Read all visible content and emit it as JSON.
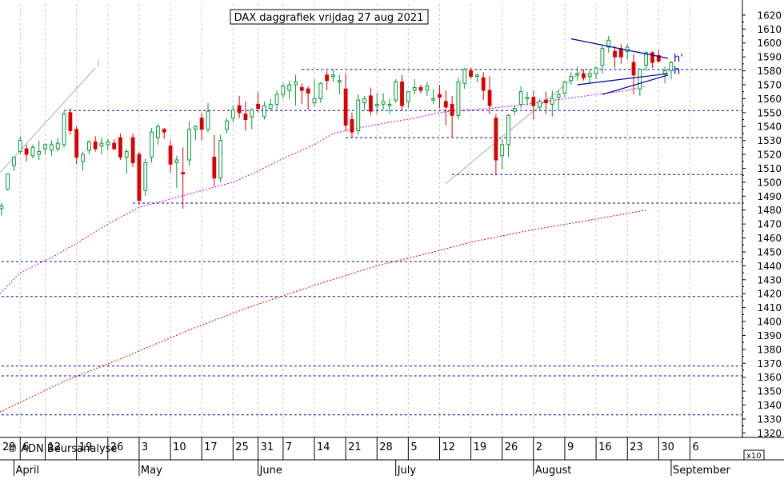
{
  "chart_data": {
    "type": "candlestick",
    "title": "DAX daggrafiek vrijdag 27 aug 2021",
    "copyright": "© ADN Beursanalyse",
    "y_multiplier_label": "x10",
    "y_ticks": [
      1320,
      1330,
      1340,
      1350,
      1360,
      1370,
      1380,
      1390,
      1400,
      1410,
      1420,
      1430,
      1440,
      1450,
      1460,
      1470,
      1480,
      1490,
      1500,
      1510,
      1520,
      1530,
      1540,
      1550,
      1560,
      1570,
      1580,
      1590,
      1600,
      1610,
      1620
    ],
    "ylim": [
      1317,
      1625
    ],
    "colors": {
      "up": "#009933",
      "down": "#dd0000",
      "grid": "#c8c8c8",
      "support": "#0000aa",
      "ma_fast": "#cc00cc",
      "ma_slow": "#dd0000",
      "trend": "#aaaaaa",
      "triangle": "#000099",
      "annotation": "#0000cc"
    },
    "x_day_labels": [
      {
        "label": "29",
        "i": -2
      },
      {
        "label": "6",
        "i": 3
      },
      {
        "label": "12",
        "i": 7
      },
      {
        "label": "19",
        "i": 12
      },
      {
        "label": "26",
        "i": 17
      },
      {
        "label": "3",
        "i": 22
      },
      {
        "label": "10",
        "i": 27
      },
      {
        "label": "17",
        "i": 32
      },
      {
        "label": "25",
        "i": 37
      },
      {
        "label": "31",
        "i": 41
      },
      {
        "label": "7",
        "i": 45
      },
      {
        "label": "14",
        "i": 50
      },
      {
        "label": "21",
        "i": 55
      },
      {
        "label": "28",
        "i": 60
      },
      {
        "label": "5",
        "i": 65
      },
      {
        "label": "12",
        "i": 70
      },
      {
        "label": "19",
        "i": 75
      },
      {
        "label": "26",
        "i": 80
      },
      {
        "label": "2",
        "i": 85
      },
      {
        "label": "9",
        "i": 90
      },
      {
        "label": "16",
        "i": 95
      },
      {
        "label": "23",
        "i": 100
      },
      {
        "label": "30",
        "i": 105
      },
      {
        "label": "6",
        "i": 110
      }
    ],
    "x_month_labels": [
      {
        "label": "April",
        "i": 2
      },
      {
        "label": "May",
        "i": 22
      },
      {
        "label": "June",
        "i": 41
      },
      {
        "label": "July",
        "i": 63
      },
      {
        "label": "August",
        "i": 85
      },
      {
        "label": "September",
        "i": 107
      }
    ],
    "support_lines": [
      {
        "y": 1551.5,
        "from": 10
      },
      {
        "y": 1532,
        "from": 55
      },
      {
        "y": 1505.5,
        "from": 72
      },
      {
        "y": 1485,
        "from": 21
      },
      {
        "y": 1581,
        "from": 48
      },
      {
        "y": 1443,
        "from": 0
      },
      {
        "y": 1418,
        "from": 0
      },
      {
        "y": 1368,
        "from": 0
      },
      {
        "y": 1361,
        "from": 0
      },
      {
        "y": 1333,
        "from": 0
      }
    ],
    "triangle": {
      "upper": [
        [
          91,
          1603
        ],
        [
          106.5,
          1589
        ]
      ],
      "lower": [
        [
          92,
          1570
        ],
        [
          106.5,
          1578
        ]
      ],
      "base": [
        [
          96,
          1563
        ],
        [
          106.5,
          1577
        ]
      ],
      "labels": [
        {
          "text": "h'",
          "i": 107,
          "y": 1589
        },
        {
          "text": "h",
          "i": 107,
          "y": 1580
        }
      ]
    },
    "trend_lines": [
      {
        "from": [
          -1.5,
          1507
        ],
        "to": [
          15,
          1582
        ],
        "label": "i"
      },
      {
        "from": [
          71,
          1499
        ],
        "to": [
          93,
          1581
        ],
        "label": ""
      }
    ],
    "ma_fast": [
      [
        -1.5,
        1420
      ],
      [
        3,
        1435
      ],
      [
        8,
        1446
      ],
      [
        12,
        1456
      ],
      [
        17,
        1470
      ],
      [
        22,
        1482
      ],
      [
        27,
        1488
      ],
      [
        32,
        1494
      ],
      [
        37,
        1500
      ],
      [
        41,
        1508
      ],
      [
        45,
        1517
      ],
      [
        50,
        1527
      ],
      [
        53,
        1535
      ],
      [
        57,
        1539
      ],
      [
        62,
        1543
      ],
      [
        66,
        1546
      ],
      [
        70,
        1550
      ],
      [
        74,
        1552
      ],
      [
        78,
        1553
      ],
      [
        84,
        1556
      ],
      [
        90,
        1560
      ],
      [
        95,
        1563
      ],
      [
        100,
        1566
      ],
      [
        103,
        1569
      ]
    ],
    "ma_slow": [
      [
        -1.5,
        1335
      ],
      [
        10,
        1357
      ],
      [
        20,
        1375
      ],
      [
        30,
        1394
      ],
      [
        40,
        1411
      ],
      [
        50,
        1426
      ],
      [
        60,
        1440
      ],
      [
        70,
        1451
      ],
      [
        75,
        1457
      ],
      [
        85,
        1466
      ],
      [
        93,
        1472
      ],
      [
        103,
        1480
      ]
    ],
    "candles": [
      {
        "o": 1481,
        "h": 1485,
        "l": 1476,
        "c": 1483
      },
      {
        "o": 1495,
        "h": 1506,
        "l": 1494,
        "c": 1506
      },
      {
        "o": 1512,
        "h": 1518,
        "l": 1508,
        "c": 1518
      },
      {
        "o": 1522,
        "h": 1533,
        "l": 1520,
        "c": 1530
      },
      {
        "o": 1524,
        "h": 1527,
        "l": 1515,
        "c": 1520
      },
      {
        "o": 1519,
        "h": 1527,
        "l": 1517,
        "c": 1525
      },
      {
        "o": 1520,
        "h": 1530,
        "l": 1516,
        "c": 1522
      },
      {
        "o": 1524,
        "h": 1528,
        "l": 1520,
        "c": 1527
      },
      {
        "o": 1523,
        "h": 1530,
        "l": 1519,
        "c": 1527
      },
      {
        "o": 1524,
        "h": 1532,
        "l": 1522,
        "c": 1528
      },
      {
        "o": 1527,
        "h": 1551,
        "l": 1525,
        "c": 1549
      },
      {
        "o": 1550,
        "h": 1553,
        "l": 1534,
        "c": 1537
      },
      {
        "o": 1538,
        "h": 1540,
        "l": 1513,
        "c": 1518
      },
      {
        "o": 1515,
        "h": 1522,
        "l": 1508,
        "c": 1520
      },
      {
        "o": 1523,
        "h": 1530,
        "l": 1520,
        "c": 1529
      },
      {
        "o": 1529,
        "h": 1533,
        "l": 1522,
        "c": 1524
      },
      {
        "o": 1526,
        "h": 1532,
        "l": 1520,
        "c": 1528
      },
      {
        "o": 1527,
        "h": 1531,
        "l": 1523,
        "c": 1529
      },
      {
        "o": 1528,
        "h": 1531,
        "l": 1523,
        "c": 1524
      },
      {
        "o": 1532,
        "h": 1535,
        "l": 1516,
        "c": 1518
      },
      {
        "o": 1518,
        "h": 1524,
        "l": 1506,
        "c": 1522
      },
      {
        "o": 1532,
        "h": 1535,
        "l": 1511,
        "c": 1514
      },
      {
        "o": 1520,
        "h": 1522,
        "l": 1484,
        "c": 1487
      },
      {
        "o": 1494,
        "h": 1517,
        "l": 1490,
        "c": 1514
      },
      {
        "o": 1518,
        "h": 1539,
        "l": 1514,
        "c": 1536
      },
      {
        "o": 1532,
        "h": 1542,
        "l": 1527,
        "c": 1540
      },
      {
        "o": 1538,
        "h": 1539,
        "l": 1531,
        "c": 1536
      },
      {
        "o": 1526,
        "h": 1530,
        "l": 1507,
        "c": 1513
      },
      {
        "o": 1514,
        "h": 1519,
        "l": 1496,
        "c": 1516
      },
      {
        "o": 1507,
        "h": 1525,
        "l": 1481,
        "c": 1506
      },
      {
        "o": 1516,
        "h": 1544,
        "l": 1512,
        "c": 1538
      },
      {
        "o": 1538,
        "h": 1541,
        "l": 1530,
        "c": 1540
      },
      {
        "o": 1546,
        "h": 1550,
        "l": 1530,
        "c": 1538
      },
      {
        "o": 1538,
        "h": 1557,
        "l": 1536,
        "c": 1551
      },
      {
        "o": 1518,
        "h": 1534,
        "l": 1497,
        "c": 1503
      },
      {
        "o": 1503,
        "h": 1534,
        "l": 1500,
        "c": 1530
      },
      {
        "o": 1538,
        "h": 1546,
        "l": 1535,
        "c": 1544
      },
      {
        "o": 1546,
        "h": 1555,
        "l": 1543,
        "c": 1552
      },
      {
        "o": 1555,
        "h": 1562,
        "l": 1546,
        "c": 1550
      },
      {
        "o": 1549,
        "h": 1558,
        "l": 1537,
        "c": 1545
      },
      {
        "o": 1547,
        "h": 1553,
        "l": 1538,
        "c": 1552
      },
      {
        "o": 1556,
        "h": 1565,
        "l": 1550,
        "c": 1553
      },
      {
        "o": 1547,
        "h": 1558,
        "l": 1545,
        "c": 1555
      },
      {
        "o": 1553,
        "h": 1560,
        "l": 1551,
        "c": 1556
      },
      {
        "o": 1556,
        "h": 1566,
        "l": 1552,
        "c": 1563
      },
      {
        "o": 1563,
        "h": 1571,
        "l": 1560,
        "c": 1569
      },
      {
        "o": 1566,
        "h": 1573,
        "l": 1560,
        "c": 1570
      },
      {
        "o": 1570,
        "h": 1577,
        "l": 1555,
        "c": 1572
      },
      {
        "o": 1568,
        "h": 1571,
        "l": 1556,
        "c": 1566
      },
      {
        "o": 1567,
        "h": 1569,
        "l": 1552,
        "c": 1564
      },
      {
        "o": 1557,
        "h": 1574,
        "l": 1554,
        "c": 1560
      },
      {
        "o": 1560,
        "h": 1572,
        "l": 1557,
        "c": 1571
      },
      {
        "o": 1577,
        "h": 1580,
        "l": 1566,
        "c": 1573
      },
      {
        "o": 1576,
        "h": 1581,
        "l": 1572,
        "c": 1577
      },
      {
        "o": 1572,
        "h": 1577,
        "l": 1563,
        "c": 1573
      },
      {
        "o": 1567,
        "h": 1578,
        "l": 1537,
        "c": 1541
      },
      {
        "o": 1545,
        "h": 1550,
        "l": 1532,
        "c": 1536
      },
      {
        "o": 1537,
        "h": 1563,
        "l": 1534,
        "c": 1559
      },
      {
        "o": 1557,
        "h": 1562,
        "l": 1552,
        "c": 1560
      },
      {
        "o": 1562,
        "h": 1568,
        "l": 1548,
        "c": 1551
      },
      {
        "o": 1555,
        "h": 1564,
        "l": 1549,
        "c": 1556
      },
      {
        "o": 1556,
        "h": 1564,
        "l": 1552,
        "c": 1558
      },
      {
        "o": 1555,
        "h": 1560,
        "l": 1549,
        "c": 1556
      },
      {
        "o": 1559,
        "h": 1574,
        "l": 1557,
        "c": 1572
      },
      {
        "o": 1572,
        "h": 1577,
        "l": 1551,
        "c": 1555
      },
      {
        "o": 1558,
        "h": 1564,
        "l": 1553,
        "c": 1565
      },
      {
        "o": 1566,
        "h": 1574,
        "l": 1563,
        "c": 1568
      },
      {
        "o": 1568,
        "h": 1570,
        "l": 1564,
        "c": 1566
      },
      {
        "o": 1566,
        "h": 1572,
        "l": 1562,
        "c": 1569
      },
      {
        "o": 1559,
        "h": 1567,
        "l": 1556,
        "c": 1560
      },
      {
        "o": 1563,
        "h": 1570,
        "l": 1553,
        "c": 1561
      },
      {
        "o": 1558,
        "h": 1566,
        "l": 1541,
        "c": 1554
      },
      {
        "o": 1556,
        "h": 1562,
        "l": 1532,
        "c": 1548
      },
      {
        "o": 1548,
        "h": 1575,
        "l": 1545,
        "c": 1572
      },
      {
        "o": 1571,
        "h": 1582,
        "l": 1567,
        "c": 1581
      },
      {
        "o": 1580,
        "h": 1582,
        "l": 1574,
        "c": 1576
      },
      {
        "o": 1576,
        "h": 1578,
        "l": 1572,
        "c": 1577
      },
      {
        "o": 1575,
        "h": 1579,
        "l": 1559,
        "c": 1566
      },
      {
        "o": 1566,
        "h": 1576,
        "l": 1549,
        "c": 1555
      },
      {
        "o": 1546,
        "h": 1549,
        "l": 1505,
        "c": 1516
      },
      {
        "o": 1519,
        "h": 1531,
        "l": 1509,
        "c": 1527
      },
      {
        "o": 1527,
        "h": 1549,
        "l": 1518,
        "c": 1548
      },
      {
        "o": 1551,
        "h": 1555,
        "l": 1548,
        "c": 1553
      },
      {
        "o": 1556,
        "h": 1569,
        "l": 1553,
        "c": 1565
      },
      {
        "o": 1560,
        "h": 1565,
        "l": 1555,
        "c": 1561
      },
      {
        "o": 1561,
        "h": 1566,
        "l": 1545,
        "c": 1555
      },
      {
        "o": 1554,
        "h": 1560,
        "l": 1551,
        "c": 1558
      },
      {
        "o": 1559,
        "h": 1565,
        "l": 1549,
        "c": 1557
      },
      {
        "o": 1556,
        "h": 1566,
        "l": 1547,
        "c": 1560
      },
      {
        "o": 1561,
        "h": 1566,
        "l": 1552,
        "c": 1563
      },
      {
        "o": 1564,
        "h": 1573,
        "l": 1561,
        "c": 1572
      },
      {
        "o": 1573,
        "h": 1579,
        "l": 1570,
        "c": 1576
      },
      {
        "o": 1577,
        "h": 1583,
        "l": 1573,
        "c": 1578
      },
      {
        "o": 1578,
        "h": 1581,
        "l": 1573,
        "c": 1575
      },
      {
        "o": 1576,
        "h": 1581,
        "l": 1571,
        "c": 1578
      },
      {
        "o": 1578,
        "h": 1583,
        "l": 1574,
        "c": 1582
      },
      {
        "o": 1584,
        "h": 1598,
        "l": 1578,
        "c": 1596
      },
      {
        "o": 1597,
        "h": 1605,
        "l": 1593,
        "c": 1602
      },
      {
        "o": 1594,
        "h": 1598,
        "l": 1582,
        "c": 1590
      },
      {
        "o": 1596,
        "h": 1599,
        "l": 1585,
        "c": 1590
      },
      {
        "o": 1594,
        "h": 1599,
        "l": 1588,
        "c": 1597
      },
      {
        "o": 1586,
        "h": 1592,
        "l": 1563,
        "c": 1577
      },
      {
        "o": 1567,
        "h": 1582,
        "l": 1562,
        "c": 1581
      },
      {
        "o": 1584,
        "h": 1594,
        "l": 1580,
        "c": 1593
      },
      {
        "o": 1593,
        "h": 1594,
        "l": 1582,
        "c": 1586
      },
      {
        "o": 1591,
        "h": 1595,
        "l": 1586,
        "c": 1587
      },
      {
        "o": 1578,
        "h": 1583,
        "l": 1571,
        "c": 1580
      },
      {
        "o": 1580,
        "h": 1587,
        "l": 1574,
        "c": 1586
      }
    ]
  }
}
